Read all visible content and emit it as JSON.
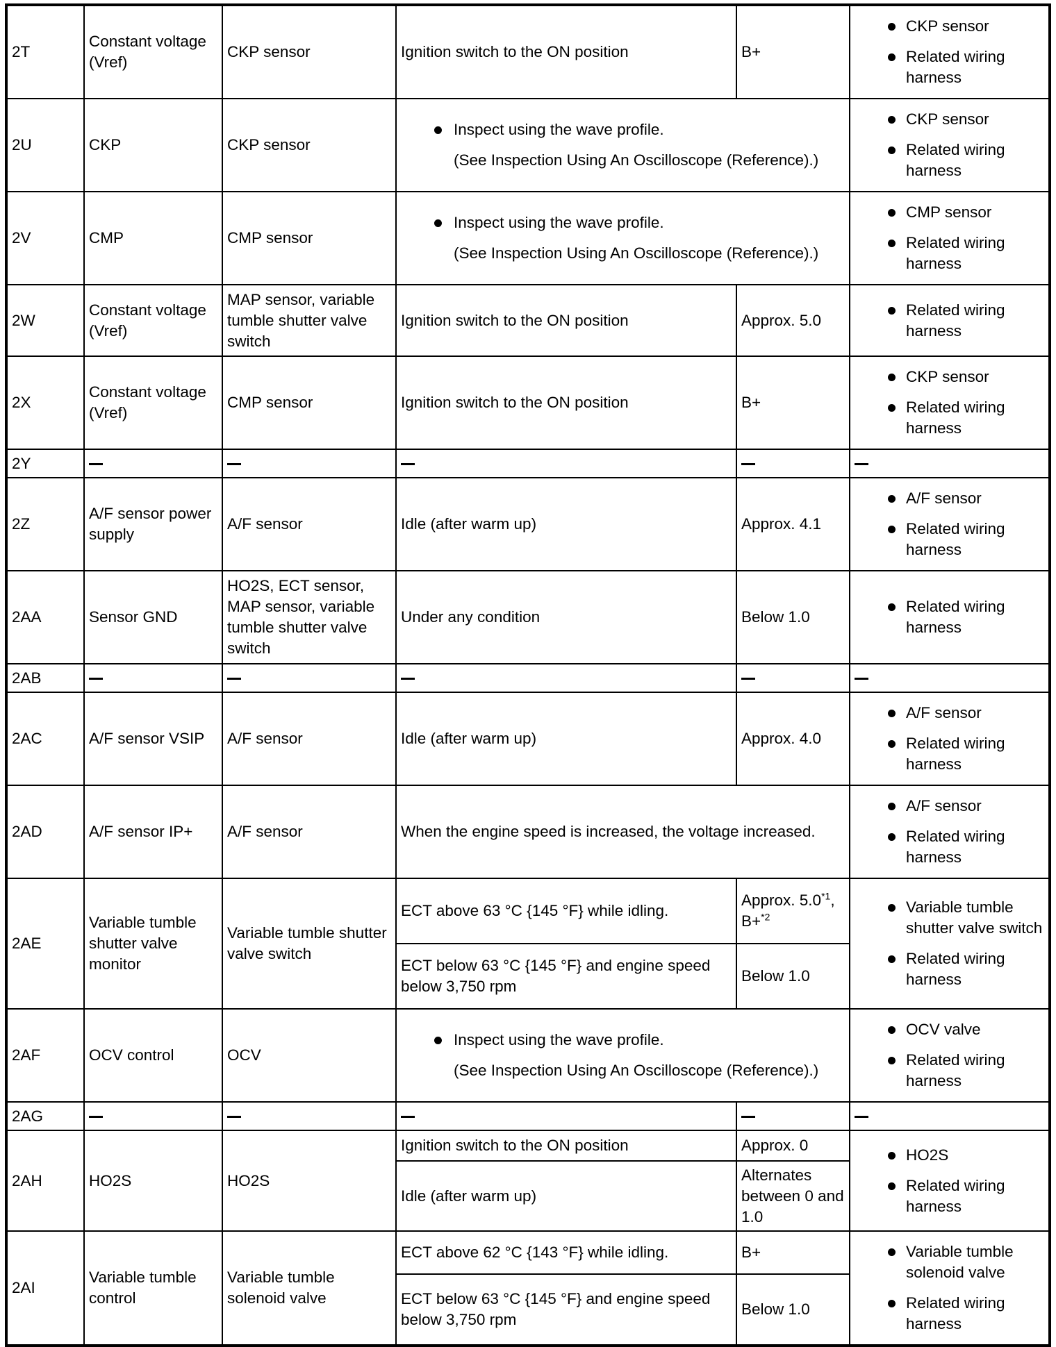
{
  "rows": [
    {
      "pin": "2T",
      "name": "Constant voltage (Vref)",
      "connected": "CKP sensor",
      "checks": [
        {
          "condition": "Ignition switch to the ON position",
          "voltage": "B+"
        }
      ],
      "inspection": [
        "CKP sensor",
        "Related wiring harness"
      ],
      "h": [
        126
      ]
    },
    {
      "pin": "2U",
      "name": "CKP",
      "connected": "CKP sensor",
      "wave": {
        "bullet": "Inspect using the wave profile.",
        "note": "(See Inspection Using An Oscilloscope (Reference).)"
      },
      "inspection": [
        "CKP sensor",
        "Related wiring harness"
      ],
      "h": [
        128
      ]
    },
    {
      "pin": "2V",
      "name": "CMP",
      "connected": "CMP sensor",
      "wave": {
        "bullet": "Inspect using the wave profile.",
        "note": "(See Inspection Using An Oscilloscope (Reference).)"
      },
      "inspection": [
        "CMP sensor",
        "Related wiring harness"
      ],
      "h": [
        128
      ]
    },
    {
      "pin": "2W",
      "name": "Constant voltage (Vref)",
      "connected": "MAP sensor, variable tumble shutter valve switch",
      "checks": [
        {
          "condition": "Ignition switch to the ON position",
          "voltage": "Approx. 5.0"
        }
      ],
      "inspection": [
        "Related wiring harness"
      ],
      "h": [
        103
      ]
    },
    {
      "pin": "2X",
      "name": "Constant voltage (Vref)",
      "connected": "CMP sensor",
      "checks": [
        {
          "condition": "Ignition switch to the ON position",
          "voltage": "B+"
        }
      ],
      "inspection": [
        "CKP sensor",
        "Related wiring harness"
      ],
      "h": [
        128
      ]
    },
    {
      "pin": "2Y",
      "blank": true,
      "h": [
        41
      ]
    },
    {
      "pin": "2Z",
      "name": "A/F sensor power supply",
      "connected": "A/F sensor",
      "checks": [
        {
          "condition": "Idle (after warm up)",
          "voltage": "Approx. 4.1"
        }
      ],
      "inspection": [
        "A/F sensor",
        "Related wiring harness"
      ],
      "h": [
        128
      ]
    },
    {
      "pin": "2AA",
      "name": "Sensor GND",
      "connected": "HO2S, ECT sensor, MAP sensor, variable tumble shutter valve switch",
      "checks": [
        {
          "condition": "Under any condition",
          "voltage": "Below 1.0"
        }
      ],
      "inspection": [
        "Related wiring harness"
      ],
      "h": [
        134
      ]
    },
    {
      "pin": "2AB",
      "blank": true,
      "h": [
        41
      ]
    },
    {
      "pin": "2AC",
      "name": "A/F sensor VSIP",
      "connected": "A/F sensor",
      "checks": [
        {
          "condition": "Idle (after warm up)",
          "voltage": "Approx. 4.0"
        }
      ],
      "inspection": [
        "A/F sensor",
        "Related wiring harness"
      ],
      "h": [
        128
      ]
    },
    {
      "pin": "2AD",
      "name": "A/F sensor IP+",
      "connected": "A/F sensor",
      "span": "When the engine speed is increased, the voltage increased.",
      "inspection": [
        "A/F sensor",
        "Related wiring harness"
      ],
      "h": [
        127
      ]
    },
    {
      "pin": "2AE",
      "name": "Variable tumble shutter valve monitor",
      "connected": "Variable tumble shutter valve switch",
      "checks": [
        {
          "condition": "ECT above 63 °C {145 °F} while idling.",
          "voltage": "Approx. 5.0",
          "sup1": "*1",
          "voltage2": ", B+",
          "sup2": "*2"
        },
        {
          "condition": "ECT below 63 °C {145 °F} and engine speed below 3,750 rpm",
          "voltage": "Below 1.0"
        }
      ],
      "inspection": [
        "Variable tumble shutter valve switch",
        "Related wiring harness"
      ],
      "h": [
        94,
        94
      ]
    },
    {
      "pin": "2AF",
      "name": "OCV control",
      "connected": "OCV",
      "wave": {
        "bullet": "Inspect using the wave profile.",
        "note": "(See Inspection Using An Oscilloscope (Reference).)"
      },
      "inspection": [
        "OCV valve",
        "Related wiring harness"
      ],
      "h": [
        128
      ]
    },
    {
      "pin": "2AG",
      "blank": true,
      "h": [
        41
      ]
    },
    {
      "pin": "2AH",
      "name": "HO2S",
      "connected": "HO2S",
      "checks": [
        {
          "condition": "Ignition switch to the ON position",
          "voltage": "Approx. 0"
        },
        {
          "condition": "Idle (after warm up)",
          "voltage": "Alternates between 0 and 1.0"
        }
      ],
      "inspection": [
        "HO2S",
        "Related wiring harness"
      ],
      "h": [
        44,
        101
      ]
    },
    {
      "pin": "2AI",
      "name": "Variable tumble control",
      "connected": "Variable tumble solenoid valve",
      "checks": [
        {
          "condition": "ECT above 62 °C {143 °F} while idling.",
          "voltage": "B+"
        },
        {
          "condition": "ECT below 63 °C {145 °F} and engine speed below 3,750 rpm",
          "voltage": "Below 1.0"
        }
      ],
      "inspection": [
        "Variable tumble solenoid valve",
        "Related wiring harness"
      ],
      "h": [
        59,
        97
      ]
    }
  ]
}
